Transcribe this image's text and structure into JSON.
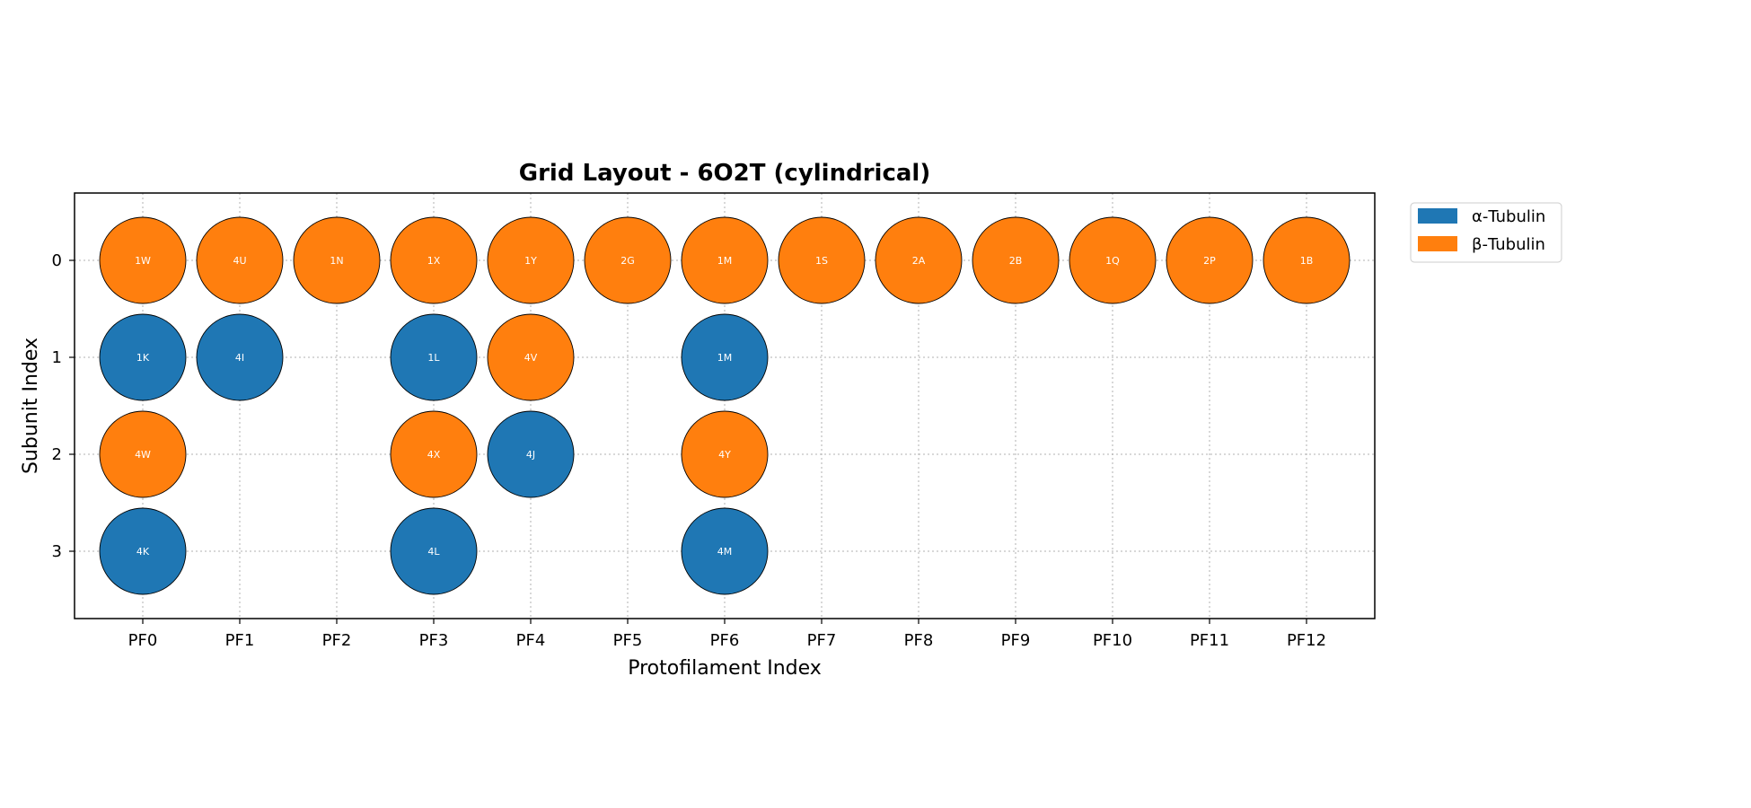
{
  "chart_data": {
    "type": "scatter",
    "title": "Grid Layout - 6O2T (cylindrical)",
    "xlabel": "Protofilament Index",
    "ylabel": "Subunit Index",
    "x_categories": [
      "PF0",
      "PF1",
      "PF2",
      "PF3",
      "PF4",
      "PF5",
      "PF6",
      "PF7",
      "PF8",
      "PF9",
      "PF10",
      "PF11",
      "PF12"
    ],
    "y_ticks": [
      "0",
      "1",
      "2",
      "3"
    ],
    "y_inverted": true,
    "grid": true,
    "legend_position": "upper-left outside right",
    "series": [
      {
        "name": "α-Tubulin",
        "color": "#1f77b4",
        "points": [
          {
            "pf": 0,
            "subunit": 1,
            "label": "1K"
          },
          {
            "pf": 1,
            "subunit": 1,
            "label": "4I"
          },
          {
            "pf": 3,
            "subunit": 1,
            "label": "1L"
          },
          {
            "pf": 6,
            "subunit": 1,
            "label": "1M"
          },
          {
            "pf": 4,
            "subunit": 2,
            "label": "4J"
          },
          {
            "pf": 0,
            "subunit": 3,
            "label": "4K"
          },
          {
            "pf": 3,
            "subunit": 3,
            "label": "4L"
          },
          {
            "pf": 6,
            "subunit": 3,
            "label": "4M"
          }
        ]
      },
      {
        "name": "β-Tubulin",
        "color": "#ff7f0e",
        "points": [
          {
            "pf": 0,
            "subunit": 0,
            "label": "1W"
          },
          {
            "pf": 1,
            "subunit": 0,
            "label": "4U"
          },
          {
            "pf": 2,
            "subunit": 0,
            "label": "1N"
          },
          {
            "pf": 3,
            "subunit": 0,
            "label": "1X"
          },
          {
            "pf": 4,
            "subunit": 0,
            "label": "1Y"
          },
          {
            "pf": 5,
            "subunit": 0,
            "label": "2G"
          },
          {
            "pf": 6,
            "subunit": 0,
            "label": "1M"
          },
          {
            "pf": 7,
            "subunit": 0,
            "label": "1S"
          },
          {
            "pf": 8,
            "subunit": 0,
            "label": "2A"
          },
          {
            "pf": 9,
            "subunit": 0,
            "label": "2B"
          },
          {
            "pf": 10,
            "subunit": 0,
            "label": "1Q"
          },
          {
            "pf": 11,
            "subunit": 0,
            "label": "2P"
          },
          {
            "pf": 12,
            "subunit": 0,
            "label": "1B"
          },
          {
            "pf": 4,
            "subunit": 1,
            "label": "4V"
          },
          {
            "pf": 0,
            "subunit": 2,
            "label": "4W"
          },
          {
            "pf": 3,
            "subunit": 2,
            "label": "4X"
          },
          {
            "pf": 6,
            "subunit": 2,
            "label": "4Y"
          }
        ]
      }
    ]
  }
}
